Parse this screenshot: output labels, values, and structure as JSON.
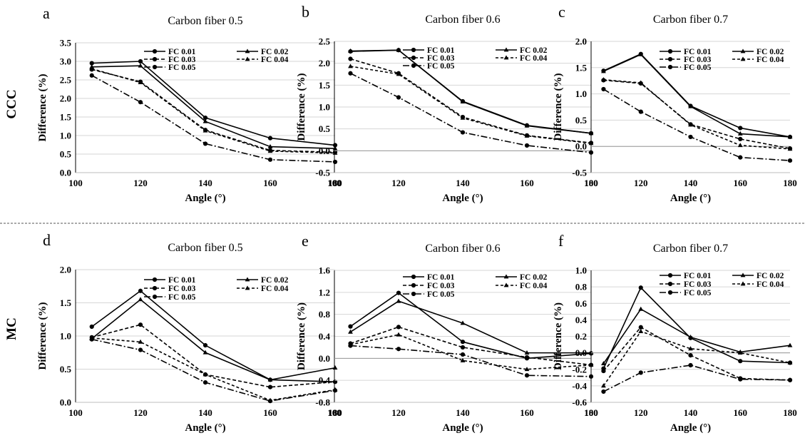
{
  "figure": {
    "row_labels": [
      "CCC",
      "MC"
    ],
    "legend_labels": [
      "FC 0.01",
      "FC 0.02",
      "FC 0.03",
      "FC 0.04",
      "FC 0.05"
    ],
    "series_styles": [
      {
        "dash": "",
        "marker": "circle"
      },
      {
        "dash": "",
        "marker": "triangle"
      },
      {
        "dash": "5,3",
        "marker": "circle"
      },
      {
        "dash": "4,3",
        "marker": "triangle"
      },
      {
        "dash": "9,3,2,3",
        "marker": "circle"
      }
    ]
  },
  "chart_data": [
    {
      "panel": "a",
      "title": "Carbon fiber 0.5",
      "type": "line",
      "xlabel": "Angle (°)",
      "ylabel": "Difference (%)",
      "x": [
        105,
        120,
        140,
        160,
        180
      ],
      "xlim": [
        100,
        180
      ],
      "xticks": [
        100,
        120,
        140,
        160,
        180
      ],
      "ylim": [
        0,
        3.5
      ],
      "yticks": [
        "0.0",
        "0.5",
        "1.0",
        "1.5",
        "2.0",
        "2.5",
        "3.0",
        "3.5"
      ],
      "grid": true,
      "legend_position": "top-right",
      "series": [
        {
          "name": "FC 0.01",
          "values": [
            2.95,
            3.0,
            1.48,
            0.93,
            0.74
          ]
        },
        {
          "name": "FC 0.02",
          "values": [
            2.85,
            2.88,
            1.38,
            0.7,
            0.65
          ]
        },
        {
          "name": "FC 0.03",
          "values": [
            2.78,
            2.45,
            1.15,
            0.6,
            0.55
          ]
        },
        {
          "name": "FC 0.04",
          "values": [
            2.8,
            2.43,
            1.13,
            0.58,
            0.53
          ]
        },
        {
          "name": "FC 0.05",
          "values": [
            2.62,
            1.9,
            0.78,
            0.35,
            0.29
          ]
        }
      ]
    },
    {
      "panel": "b",
      "title": "Carbon fiber 0.6",
      "type": "line",
      "xlabel": "Angle (°)",
      "ylabel": "Difference (%)",
      "x": [
        105,
        120,
        140,
        160,
        180
      ],
      "xlim": [
        100,
        180
      ],
      "xticks": [
        100,
        120,
        140,
        160,
        180
      ],
      "ylim": [
        -0.5,
        2.5
      ],
      "yticks": [
        "-0.5",
        "0.0",
        "0.5",
        "1.0",
        "1.5",
        "2.0",
        "2.5"
      ],
      "grid": true,
      "legend_position": "top-right",
      "series": [
        {
          "name": "FC 0.01",
          "values": [
            2.27,
            2.3,
            1.13,
            0.58,
            0.4
          ]
        },
        {
          "name": "FC 0.02",
          "values": [
            2.28,
            2.3,
            1.12,
            0.57,
            0.4
          ]
        },
        {
          "name": "FC 0.03",
          "values": [
            2.1,
            1.77,
            0.77,
            0.35,
            0.18
          ]
        },
        {
          "name": "FC 0.04",
          "values": [
            1.93,
            1.75,
            0.75,
            0.34,
            0.17
          ]
        },
        {
          "name": "FC 0.05",
          "values": [
            1.77,
            1.22,
            0.42,
            0.12,
            -0.04
          ]
        }
      ]
    },
    {
      "panel": "c",
      "title": "Carbon fiber  0.7",
      "type": "line",
      "xlabel": "Angle (°)",
      "ylabel": "Difference (%)",
      "x": [
        105,
        120,
        140,
        160,
        180
      ],
      "xlim": [
        100,
        180
      ],
      "xticks": [
        100,
        120,
        140,
        160,
        180
      ],
      "ylim": [
        -0.5,
        2.0
      ],
      "yticks": [
        "-0.5",
        "0.0",
        "0.5",
        "1.0",
        "1.5",
        "2.0"
      ],
      "grid": true,
      "legend_position": "top-right",
      "series": [
        {
          "name": "FC 0.01",
          "values": [
            1.44,
            1.76,
            0.77,
            0.35,
            0.18
          ]
        },
        {
          "name": "FC 0.02",
          "values": [
            1.43,
            1.75,
            0.76,
            0.24,
            0.18
          ]
        },
        {
          "name": "FC 0.03",
          "values": [
            1.26,
            1.2,
            0.42,
            0.14,
            -0.04
          ]
        },
        {
          "name": "FC 0.04",
          "values": [
            1.27,
            1.21,
            0.41,
            0.02,
            -0.05
          ]
        },
        {
          "name": "FC 0.05",
          "values": [
            1.09,
            0.66,
            0.18,
            -0.21,
            -0.27
          ]
        }
      ]
    },
    {
      "panel": "d",
      "title": "Carbon fiber  0.5",
      "type": "line",
      "xlabel": "Angle (°)",
      "ylabel": "Difference (%)",
      "x": [
        105,
        120,
        140,
        160,
        180
      ],
      "xlim": [
        100,
        180
      ],
      "xticks": [
        100,
        120,
        140,
        160,
        180
      ],
      "ylim": [
        0,
        2.0
      ],
      "yticks": [
        "0.0",
        "0.5",
        "1.0",
        "1.5",
        "2.0"
      ],
      "grid": true,
      "legend_position": "top-right",
      "series": [
        {
          "name": "FC 0.01",
          "values": [
            1.14,
            1.68,
            0.86,
            0.34,
            0.31
          ]
        },
        {
          "name": "FC 0.02",
          "values": [
            0.96,
            1.55,
            0.75,
            0.34,
            0.52
          ]
        },
        {
          "name": "FC 0.03",
          "values": [
            0.98,
            1.17,
            0.42,
            0.23,
            0.31
          ]
        },
        {
          "name": "FC 0.04",
          "values": [
            0.97,
            0.91,
            0.42,
            0.03,
            0.19
          ]
        },
        {
          "name": "FC 0.05",
          "values": [
            0.95,
            0.79,
            0.3,
            0.02,
            0.18
          ]
        }
      ]
    },
    {
      "panel": "e",
      "title": "Carbon fiber  0.6",
      "type": "line",
      "xlabel": "Angle (°)",
      "ylabel": "Difference (%)",
      "x": [
        105,
        120,
        140,
        160,
        180
      ],
      "xlim": [
        100,
        180
      ],
      "xticks": [
        100,
        120,
        140,
        160,
        180
      ],
      "ylim": [
        -0.8,
        1.6
      ],
      "yticks": [
        "-0.8",
        "-0.4",
        "0.0",
        "0.4",
        "0.8",
        "1.2",
        "1.6"
      ],
      "grid": true,
      "legend_position": "top-right",
      "series": [
        {
          "name": "FC 0.01",
          "values": [
            0.58,
            1.19,
            0.3,
            0.0,
            0.09
          ]
        },
        {
          "name": "FC 0.02",
          "values": [
            0.48,
            1.04,
            0.64,
            0.1,
            0.1
          ]
        },
        {
          "name": "FC 0.03",
          "values": [
            0.27,
            0.57,
            0.2,
            0.02,
            -0.12
          ]
        },
        {
          "name": "FC 0.04",
          "values": [
            0.25,
            0.43,
            -0.04,
            -0.2,
            -0.12
          ]
        },
        {
          "name": "FC 0.05",
          "values": [
            0.23,
            0.17,
            0.07,
            -0.31,
            -0.33
          ]
        }
      ]
    },
    {
      "panel": "f",
      "title": "Carbon fiber  0.7",
      "type": "line",
      "xlabel": "Angle (°)",
      "ylabel": "Difference (%)",
      "x": [
        105,
        120,
        140,
        160,
        180
      ],
      "xlim": [
        100,
        180
      ],
      "xticks": [
        100,
        120,
        140,
        160,
        180
      ],
      "ylim": [
        -0.6,
        1.0
      ],
      "yticks": [
        "-0.6",
        "-0.4",
        "-0.2",
        "0.0",
        "0.2",
        "0.4",
        "0.6",
        "0.8",
        "1.0"
      ],
      "grid": true,
      "legend_position": "top-right",
      "series": [
        {
          "name": "FC 0.01",
          "values": [
            -0.19,
            0.79,
            0.18,
            -0.1,
            -0.12
          ]
        },
        {
          "name": "FC 0.02",
          "values": [
            -0.13,
            0.53,
            0.19,
            0.01,
            0.09
          ]
        },
        {
          "name": "FC 0.03",
          "values": [
            -0.22,
            0.31,
            -0.03,
            -0.31,
            -0.33
          ]
        },
        {
          "name": "FC 0.04",
          "values": [
            -0.4,
            0.26,
            0.05,
            0.0,
            -0.12
          ]
        },
        {
          "name": "FC 0.05",
          "values": [
            -0.47,
            -0.24,
            -0.15,
            -0.32,
            -0.33
          ]
        }
      ]
    }
  ]
}
